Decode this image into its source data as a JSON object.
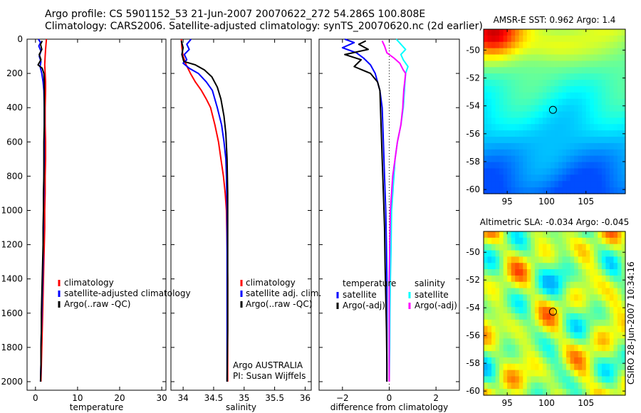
{
  "header": {
    "line1": "Argo profile: CS 5901152_53 21-Jun-2007 20070622_272 54.286S 100.808E",
    "line2": "Climatology: CARS2006. Satellite-adjusted climatology: synTS_20070620.nc (2d earlier)"
  },
  "credit": "CSIRO 28-Jun-2007 10:34:16",
  "colors": {
    "climatology": "#ff0000",
    "satellite": "#0000ff",
    "argo": "#000000",
    "sal_satellite": "#00ffff",
    "sal_argo": "#ff00ff"
  },
  "chart_data": [
    {
      "type": "line",
      "id": "temperature",
      "xlabel": "temperature",
      "ylabel": "",
      "xlim": [
        -2,
        31
      ],
      "ylim": [
        2050,
        0
      ],
      "y_inverted": true,
      "xticks": [
        0,
        10,
        20,
        30
      ],
      "yticks": [
        0,
        200,
        400,
        600,
        800,
        1000,
        1200,
        1400,
        1600,
        1800,
        2000
      ],
      "legend_position": "lower-right",
      "series": [
        {
          "name": "climatology",
          "color": "#ff0000",
          "points": [
            [
              2.6,
              0
            ],
            [
              2.5,
              30
            ],
            [
              2.4,
              60
            ],
            [
              2.3,
              100
            ],
            [
              2.2,
              150
            ],
            [
              2.3,
              200
            ],
            [
              2.4,
              250
            ],
            [
              2.4,
              300
            ],
            [
              2.3,
              400
            ],
            [
              2.3,
              500
            ],
            [
              2.4,
              600
            ],
            [
              2.4,
              700
            ],
            [
              2.3,
              800
            ],
            [
              2.3,
              900
            ],
            [
              2.2,
              1000
            ],
            [
              2.2,
              1100
            ],
            [
              2.1,
              1200
            ],
            [
              2.0,
              1300
            ],
            [
              1.9,
              1400
            ],
            [
              1.8,
              1500
            ],
            [
              1.7,
              1600
            ],
            [
              1.6,
              1700
            ],
            [
              1.5,
              1800
            ],
            [
              1.4,
              1900
            ],
            [
              1.3,
              2000
            ]
          ]
        },
        {
          "name": "satellite-adjusted climatology",
          "color": "#0000ff",
          "points": [
            [
              0.7,
              0
            ],
            [
              1.2,
              20
            ],
            [
              0.8,
              40
            ],
            [
              1.3,
              70
            ],
            [
              0.9,
              100
            ],
            [
              1.3,
              130
            ],
            [
              1.1,
              160
            ],
            [
              1.5,
              200
            ],
            [
              1.8,
              250
            ],
            [
              2.0,
              300
            ],
            [
              2.1,
              400
            ],
            [
              2.1,
              500
            ],
            [
              2.1,
              600
            ],
            [
              2.1,
              700
            ],
            [
              2.0,
              800
            ],
            [
              2.0,
              900
            ],
            [
              1.9,
              1000
            ],
            [
              1.9,
              1100
            ],
            [
              1.8,
              1200
            ],
            [
              1.8,
              1300
            ],
            [
              1.7,
              1400
            ],
            [
              1.6,
              1500
            ],
            [
              1.5,
              1600
            ],
            [
              1.4,
              1700
            ],
            [
              1.3,
              1800
            ],
            [
              1.3,
              1900
            ],
            [
              1.2,
              2000
            ]
          ]
        },
        {
          "name": "Argo(..raw -QC)",
          "color": "#000000",
          "points": [
            [
              1.6,
              10
            ],
            [
              1.2,
              30
            ],
            [
              1.5,
              60
            ],
            [
              0.9,
              90
            ],
            [
              1.3,
              120
            ],
            [
              0.6,
              150
            ],
            [
              1.6,
              170
            ],
            [
              2.0,
              200
            ],
            [
              2.1,
              250
            ],
            [
              2.1,
              300
            ],
            [
              2.1,
              400
            ],
            [
              2.1,
              500
            ],
            [
              2.0,
              600
            ],
            [
              2.0,
              700
            ],
            [
              2.0,
              800
            ],
            [
              1.9,
              900
            ],
            [
              1.9,
              1000
            ],
            [
              1.8,
              1100
            ],
            [
              1.8,
              1200
            ],
            [
              1.7,
              1300
            ],
            [
              1.6,
              1400
            ],
            [
              1.5,
              1500
            ],
            [
              1.4,
              1600
            ],
            [
              1.4,
              1700
            ],
            [
              1.3,
              1800
            ],
            [
              1.3,
              1900
            ],
            [
              1.2,
              2000
            ]
          ]
        }
      ],
      "legend": [
        "climatology",
        "satellite-adjusted climatology",
        "Argo(..raw -QC)"
      ]
    },
    {
      "type": "line",
      "id": "salinity",
      "xlabel": "salinity",
      "xlim": [
        33.8,
        36.1
      ],
      "ylim": [
        2050,
        0
      ],
      "y_inverted": true,
      "xticks": [
        34,
        34.5,
        35,
        35.5,
        36
      ],
      "yticks": [
        0,
        200,
        400,
        600,
        800,
        1000,
        1200,
        1400,
        1600,
        1800,
        2000
      ],
      "legend_position": "lower-right",
      "series": [
        {
          "name": "climatology",
          "color": "#ff0000",
          "points": [
            [
              33.97,
              0
            ],
            [
              33.98,
              50
            ],
            [
              34.0,
              100
            ],
            [
              34.05,
              150
            ],
            [
              34.12,
              200
            ],
            [
              34.2,
              250
            ],
            [
              34.3,
              300
            ],
            [
              34.38,
              350
            ],
            [
              34.45,
              400
            ],
            [
              34.52,
              500
            ],
            [
              34.58,
              600
            ],
            [
              34.62,
              700
            ],
            [
              34.66,
              800
            ],
            [
              34.69,
              900
            ],
            [
              34.71,
              1000
            ],
            [
              34.72,
              1200
            ],
            [
              34.73,
              1400
            ],
            [
              34.73,
              1600
            ],
            [
              34.73,
              1800
            ],
            [
              34.73,
              2000
            ]
          ]
        },
        {
          "name": "satellite adj. clim.",
          "color": "#0000ff",
          "points": [
            [
              34.13,
              0
            ],
            [
              34.06,
              30
            ],
            [
              34.1,
              60
            ],
            [
              34.02,
              90
            ],
            [
              34.06,
              120
            ],
            [
              34.0,
              140
            ],
            [
              34.1,
              170
            ],
            [
              34.25,
              200
            ],
            [
              34.38,
              250
            ],
            [
              34.48,
              300
            ],
            [
              34.56,
              400
            ],
            [
              34.63,
              500
            ],
            [
              34.67,
              600
            ],
            [
              34.7,
              700
            ],
            [
              34.71,
              800
            ],
            [
              34.72,
              1000
            ],
            [
              34.72,
              1200
            ],
            [
              34.72,
              1400
            ],
            [
              34.72,
              1600
            ],
            [
              34.72,
              1800
            ],
            [
              34.72,
              2000
            ]
          ]
        },
        {
          "name": "Argo(..raw -QC)",
          "color": "#000000",
          "points": [
            [
              33.97,
              10
            ],
            [
              34.0,
              50
            ],
            [
              33.98,
              90
            ],
            [
              34.01,
              130
            ],
            [
              34.2,
              150
            ],
            [
              34.35,
              180
            ],
            [
              34.47,
              220
            ],
            [
              34.56,
              280
            ],
            [
              34.62,
              350
            ],
            [
              34.67,
              450
            ],
            [
              34.7,
              550
            ],
            [
              34.72,
              700
            ],
            [
              34.73,
              900
            ],
            [
              34.73,
              1100
            ],
            [
              34.73,
              1400
            ],
            [
              34.73,
              1700
            ],
            [
              34.72,
              2000
            ]
          ]
        }
      ],
      "legend": [
        "climatology",
        "satellite adj. clim.",
        "Argo(..raw -QC)"
      ],
      "annotations": [
        "Argo AUSTRALIA",
        "PI: Susan Wijffels"
      ]
    },
    {
      "type": "line",
      "id": "difference",
      "xlabel": "difference from climatology",
      "xlim": [
        -3,
        3
      ],
      "ylim": [
        2050,
        0
      ],
      "y_inverted": true,
      "xticks": [
        -2,
        0,
        2
      ],
      "xtick_labels": [
        "−2",
        "0",
        "2"
      ],
      "yticks": [
        0,
        200,
        400,
        600,
        800,
        1000,
        1200,
        1400,
        1600,
        1800,
        2000
      ],
      "zero_line": true,
      "series": [
        {
          "name": "temperature satellite",
          "color": "#0000ff",
          "points": [
            [
              -1.9,
              0
            ],
            [
              -1.5,
              20
            ],
            [
              -2.0,
              50
            ],
            [
              -1.4,
              80
            ],
            [
              -1.1,
              110
            ],
            [
              -0.8,
              150
            ],
            [
              -0.6,
              200
            ],
            [
              -0.4,
              300
            ],
            [
              -0.3,
              400
            ],
            [
              -0.25,
              600
            ],
            [
              -0.2,
              800
            ],
            [
              -0.15,
              1000
            ],
            [
              -0.12,
              1200
            ],
            [
              -0.1,
              1400
            ],
            [
              -0.1,
              1600
            ],
            [
              -0.1,
              1800
            ],
            [
              -0.1,
              2000
            ]
          ]
        },
        {
          "name": "temperature Argo(-adj)",
          "color": "#000000",
          "points": [
            [
              -1.0,
              10
            ],
            [
              -1.3,
              30
            ],
            [
              -0.9,
              60
            ],
            [
              -1.9,
              90
            ],
            [
              -1.2,
              120
            ],
            [
              -1.5,
              160
            ],
            [
              -0.8,
              200
            ],
            [
              -0.5,
              250
            ],
            [
              -0.4,
              300
            ],
            [
              -0.35,
              500
            ],
            [
              -0.3,
              700
            ],
            [
              -0.25,
              900
            ],
            [
              -0.2,
              1100
            ],
            [
              -0.18,
              1300
            ],
            [
              -0.15,
              1500
            ],
            [
              -0.12,
              1700
            ],
            [
              -0.1,
              1900
            ],
            [
              -0.1,
              2000
            ]
          ]
        },
        {
          "name": "salinity satellite",
          "color": "#00ffff",
          "points": [
            [
              0.3,
              0
            ],
            [
              0.5,
              30
            ],
            [
              0.7,
              60
            ],
            [
              0.5,
              90
            ],
            [
              0.6,
              120
            ],
            [
              0.8,
              160
            ],
            [
              0.7,
              200
            ],
            [
              0.65,
              300
            ],
            [
              0.6,
              400
            ],
            [
              0.5,
              500
            ],
            [
              0.35,
              600
            ],
            [
              0.25,
              700
            ],
            [
              0.2,
              800
            ],
            [
              0.15,
              900
            ],
            [
              0.1,
              1000
            ],
            [
              0.08,
              1200
            ],
            [
              0.05,
              1400
            ],
            [
              0.03,
              1600
            ],
            [
              0.02,
              1800
            ],
            [
              0.0,
              2000
            ]
          ]
        },
        {
          "name": "salinity Argo(-adj)",
          "color": "#ff00ff",
          "points": [
            [
              -0.3,
              10
            ],
            [
              -0.2,
              40
            ],
            [
              -0.1,
              80
            ],
            [
              0.2,
              110
            ],
            [
              0.45,
              140
            ],
            [
              0.6,
              180
            ],
            [
              0.7,
              200
            ],
            [
              0.62,
              300
            ],
            [
              0.58,
              400
            ],
            [
              0.5,
              500
            ],
            [
              0.35,
              600
            ],
            [
              0.25,
              700
            ],
            [
              0.15,
              800
            ],
            [
              0.1,
              900
            ],
            [
              0.05,
              1000
            ],
            [
              0.02,
              1200
            ],
            [
              0.0,
              1400
            ],
            [
              0.0,
              1600
            ],
            [
              0.0,
              1800
            ],
            [
              0.0,
              2000
            ]
          ]
        }
      ],
      "legend_temperature": {
        "title": "temperature",
        "items": [
          "satellite",
          "Argo(-adj)"
        ]
      },
      "legend_salinity": {
        "title": "salinity",
        "items": [
          "satellite",
          "Argo(-adj)"
        ]
      }
    },
    {
      "type": "heatmap",
      "id": "sst_map",
      "title": "AMSR-E SST: 0.962 Argo: 1.4",
      "xlim": [
        92,
        110
      ],
      "ylim": [
        -60.3,
        -48.5
      ],
      "xticks": [
        95,
        100,
        105
      ],
      "xtick_labels": [
        "95",
        "100",
        "105"
      ],
      "yticks": [
        -50,
        -52,
        -54,
        -56,
        -58,
        -60
      ],
      "marker": {
        "lon": 100.808,
        "lat": -54.286
      }
    },
    {
      "type": "heatmap",
      "id": "sla_map",
      "title": "Altimetric SLA: -0.034 Argo: -0.045",
      "xlim": [
        92,
        110
      ],
      "ylim": [
        -60.3,
        -48.5
      ],
      "xticks": [
        95,
        100,
        105
      ],
      "xtick_labels": [
        "95",
        "100",
        "105"
      ],
      "yticks": [
        -50,
        -52,
        -54,
        -56,
        -58,
        -60
      ],
      "marker": {
        "lon": 100.808,
        "lat": -54.286
      }
    }
  ]
}
